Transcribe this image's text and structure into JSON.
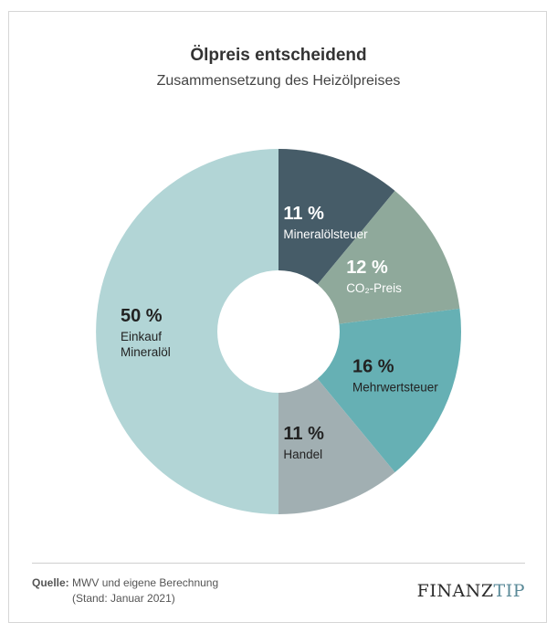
{
  "header": {
    "title": "Ölpreis entscheidend",
    "subtitle": "Zusammensetzung des Heizölpreises"
  },
  "chart_data": {
    "type": "pie",
    "title": "Ölpreis entscheidend",
    "subtitle": "Zusammensetzung des Heizölpreises",
    "donut": true,
    "unit": "%",
    "slices": [
      {
        "value": 11,
        "pct_label": "11 %",
        "label_lines": [
          "Mineralölsteuer"
        ],
        "color": "#465c68",
        "text_color": "#ffffff"
      },
      {
        "value": 12,
        "pct_label": "12 %",
        "label_lines": [
          "CO₂-Preis"
        ],
        "color": "#8fa99b",
        "text_color": "#ffffff"
      },
      {
        "value": 16,
        "pct_label": "16 %",
        "label_lines": [
          "Mehrwertsteuer"
        ],
        "color": "#66b0b4",
        "text_color": "#222222"
      },
      {
        "value": 11,
        "pct_label": "11 %",
        "label_lines": [
          "Handel"
        ],
        "color": "#a1afb2",
        "text_color": "#222222"
      },
      {
        "value": 50,
        "pct_label": "50 %",
        "label_lines": [
          "Einkauf",
          "Mineralöl"
        ],
        "color": "#b2d5d6",
        "text_color": "#222222"
      }
    ]
  },
  "footer": {
    "source_label": "Quelle:",
    "source_text": "MWV und eigene Berechnung",
    "source_date": "(Stand: Januar 2021)",
    "brand_part1": "FINANZ",
    "brand_part2": "TIP"
  }
}
